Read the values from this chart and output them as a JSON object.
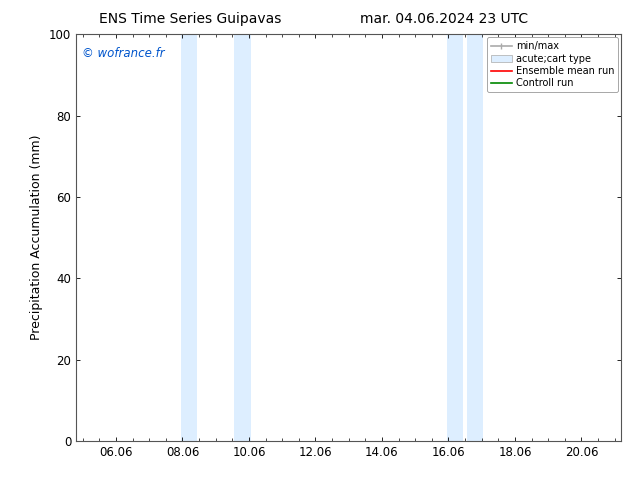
{
  "title_left": "ENS Time Series Guipavas",
  "title_right": "mar. 04.06.2024 23 UTC",
  "ylabel": "Precipitation Accumulation (mm)",
  "watermark": "© wofrance.fr",
  "watermark_color": "#0055cc",
  "ylim": [
    0,
    100
  ],
  "xlim_start": 4.8,
  "xlim_end": 21.2,
  "xticks": [
    6.0,
    8.0,
    10.0,
    12.0,
    14.0,
    16.0,
    18.0,
    20.0
  ],
  "xticklabels": [
    "06.06",
    "08.06",
    "10.06",
    "12.06",
    "14.06",
    "16.06",
    "18.06",
    "20.06"
  ],
  "yticks": [
    0,
    20,
    40,
    60,
    80,
    100
  ],
  "shade_bands": [
    {
      "xmin": 7.95,
      "xmax": 8.45,
      "color": "#ddeeff"
    },
    {
      "xmin": 9.55,
      "xmax": 10.05,
      "color": "#ddeeff"
    },
    {
      "xmin": 15.95,
      "xmax": 16.45,
      "color": "#ddeeff"
    },
    {
      "xmin": 16.55,
      "xmax": 17.05,
      "color": "#ddeeff"
    }
  ],
  "legend_items": [
    {
      "label": "min/max",
      "color": "#aaaaaa",
      "lw": 1.2,
      "style": "line_with_caps"
    },
    {
      "label": "acute;cart type",
      "color": "#ddeeff",
      "lw": 8,
      "style": "thick"
    },
    {
      "label": "Ensemble mean run",
      "color": "#ff0000",
      "lw": 1.2,
      "style": "line"
    },
    {
      "label": "Controll run",
      "color": "#008800",
      "lw": 1.2,
      "style": "line"
    }
  ],
  "bg_color": "#ffffff",
  "plot_bg_color": "#ffffff",
  "grid_color": "#dddddd",
  "tick_font_size": 8.5,
  "label_font_size": 9,
  "title_font_size": 10
}
